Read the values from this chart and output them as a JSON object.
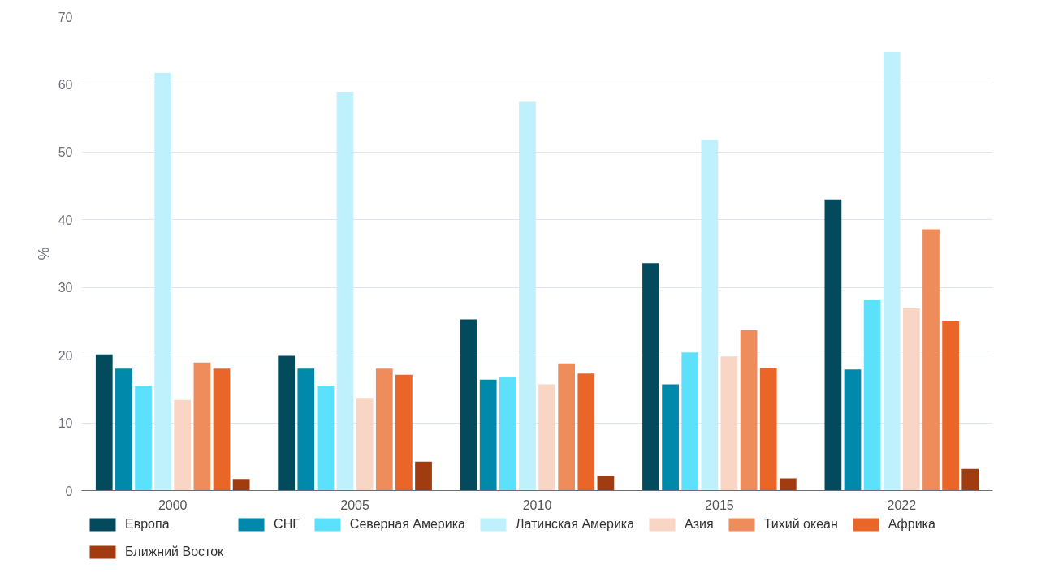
{
  "chart_data": {
    "type": "bar",
    "ylabel": "%",
    "categories": [
      "2000",
      "2005",
      "2010",
      "2015",
      "2022"
    ],
    "ylim": [
      0,
      70
    ],
    "yticks": [
      0,
      10,
      20,
      30,
      40,
      50,
      60,
      70
    ],
    "grid": "y",
    "legend": "bottom",
    "series": [
      {
        "name": "Европа",
        "color": "#034a5c",
        "values": [
          20.1,
          19.9,
          25.3,
          33.6,
          43.0
        ]
      },
      {
        "name": "СНГ",
        "color": "#0089aa",
        "values": [
          18.0,
          18.0,
          16.4,
          15.7,
          17.9
        ]
      },
      {
        "name": "Северная Америка",
        "color": "#5ce1fd",
        "values": [
          15.5,
          15.5,
          16.8,
          20.4,
          28.1
        ]
      },
      {
        "name": "Латинская Америка",
        "color": "#bff1fd",
        "values": [
          61.7,
          58.9,
          57.4,
          51.8,
          64.8
        ]
      },
      {
        "name": "Азия",
        "color": "#f8d5c5",
        "values": [
          13.4,
          13.7,
          15.7,
          19.8,
          26.9
        ]
      },
      {
        "name": "Тихий океан",
        "color": "#ef8c5c",
        "values": [
          18.9,
          18.0,
          18.8,
          23.7,
          38.6
        ]
      },
      {
        "name": "Африка",
        "color": "#ea6628",
        "values": [
          18.0,
          17.1,
          17.3,
          18.1,
          25.0
        ]
      },
      {
        "name": "Ближний Восток",
        "color": "#a03c10",
        "values": [
          1.7,
          4.3,
          2.2,
          1.8,
          3.2
        ]
      }
    ]
  }
}
